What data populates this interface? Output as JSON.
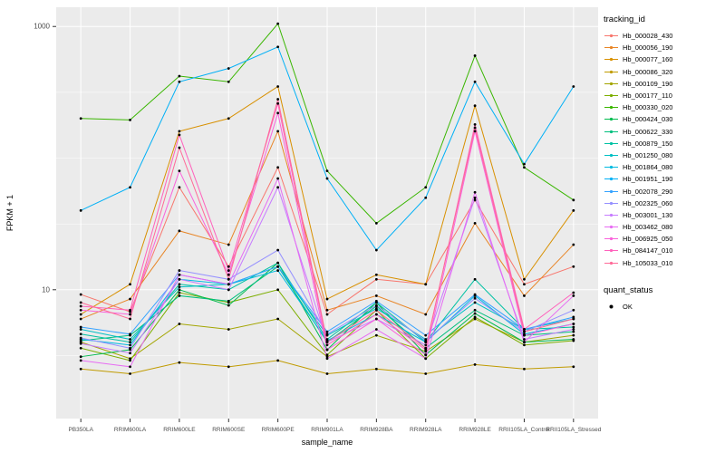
{
  "panel": {
    "bg": "#EBEBEB",
    "grid_major": "#FFFFFF",
    "grid_minor": "#FFFFFF",
    "tick_color": "#333333"
  },
  "chart_data": {
    "type": "line",
    "title": "",
    "xlabel": "sample_name",
    "ylabel": "FPKM + 1",
    "y_scale": "log10",
    "ylim": [
      1.05,
      1400
    ],
    "y_ticks": [
      {
        "value": 1000,
        "label": "1000"
      },
      {
        "value": 10,
        "label": "10"
      }
    ],
    "y_minor": [
      3.16,
      31.6,
      100,
      316
    ],
    "point_color": "#000000",
    "categories": [
      "PB350LA",
      "RRIM600LA",
      "RRIM600LE",
      "RRIM600SE",
      "RRIM600PE",
      "RRIM901LA",
      "RRIM928BA",
      "RRIM928LA",
      "RRIM928LE",
      "RRII105LA_Control",
      "RRII105LA_Stressed"
    ],
    "legend": {
      "color_title": "tracking_id",
      "shape_title": "quant_status",
      "shape_entries": [
        {
          "label": "OK"
        }
      ]
    },
    "series": [
      {
        "name": "Hb_000028_430",
        "color": "#F8766D",
        "values": [
          9.2,
          6.8,
          60,
          15,
          85,
          6.5,
          12,
          11,
          48,
          11,
          15
        ]
      },
      {
        "name": "Hb_000056_190",
        "color": "#E88526",
        "values": [
          6.0,
          8.5,
          28,
          22,
          160,
          7.0,
          9,
          6.5,
          32,
          9,
          22
        ]
      },
      {
        "name": "Hb_000077_160",
        "color": "#D89000",
        "values": [
          6.5,
          11,
          160,
          200,
          350,
          8.5,
          13,
          11,
          250,
          12,
          40
        ]
      },
      {
        "name": "Hb_000086_320",
        "color": "#C09B00",
        "values": [
          2.5,
          2.3,
          2.8,
          2.6,
          2.9,
          2.3,
          2.5,
          2.3,
          2.7,
          2.5,
          2.6
        ]
      },
      {
        "name": "Hb_000109_190",
        "color": "#A3A500",
        "values": [
          4.0,
          3.0,
          5.5,
          5.0,
          6.0,
          3.1,
          4.5,
          3.4,
          6.0,
          4.0,
          4.5
        ]
      },
      {
        "name": "Hb_000177_110",
        "color": "#7CAE00",
        "values": [
          3.6,
          2.9,
          9.5,
          8.0,
          10,
          3.2,
          7.0,
          3.0,
          6.2,
          3.8,
          4.1
        ]
      },
      {
        "name": "Hb_000330_020",
        "color": "#39B600",
        "values": [
          200,
          195,
          420,
          380,
          1050,
          80,
          32,
          60,
          600,
          85,
          48
        ]
      },
      {
        "name": "Hb_000424_030",
        "color": "#00BB4E",
        "values": [
          3.1,
          3.5,
          10,
          7.6,
          16,
          3.5,
          8.0,
          3.2,
          6.6,
          4.0,
          4.2
        ]
      },
      {
        "name": "Hb_000622_330",
        "color": "#00BF7D",
        "values": [
          4.1,
          4.5,
          9.0,
          8.2,
          15,
          4.0,
          7.5,
          3.6,
          7.0,
          4.5,
          4.8
        ]
      },
      {
        "name": "Hb_000879_150",
        "color": "#00C1A3",
        "values": [
          4.6,
          4.0,
          11,
          10,
          16,
          4.2,
          8.0,
          4.0,
          12,
          5.0,
          5.2
        ]
      },
      {
        "name": "Hb_001250_080",
        "color": "#00BFC4",
        "values": [
          5.0,
          4.2,
          10.5,
          11,
          15,
          4.5,
          7.2,
          4.2,
          8.0,
          5.0,
          6.0
        ]
      },
      {
        "name": "Hb_001864_080",
        "color": "#00BAE0",
        "values": [
          4.2,
          3.8,
          12,
          11,
          14,
          4.1,
          6.5,
          4.0,
          9.0,
          4.6,
          5.5
        ]
      },
      {
        "name": "Hb_001951_190",
        "color": "#00B0F6",
        "values": [
          40,
          60,
          380,
          480,
          700,
          70,
          20,
          50,
          380,
          90,
          350
        ]
      },
      {
        "name": "Hb_002078_290",
        "color": "#35A2FF",
        "values": [
          5.2,
          4.6,
          13,
          11,
          15,
          4.8,
          8.2,
          4.5,
          9.2,
          5.0,
          6.2
        ]
      },
      {
        "name": "Hb_002325_060",
        "color": "#9590FF",
        "values": [
          4.3,
          3.6,
          14,
          12,
          20,
          4.6,
          7.6,
          4.1,
          8.6,
          4.8,
          7.0
        ]
      },
      {
        "name": "Hb_003001_130",
        "color": "#C77CFF",
        "values": [
          3.9,
          3.3,
          12,
          10,
          60,
          4.0,
          6.0,
          3.8,
          50,
          4.2,
          5.0
        ]
      },
      {
        "name": "Hb_003462_080",
        "color": "#E76BF3",
        "values": [
          2.9,
          2.6,
          13,
          11,
          70,
          3.0,
          5.0,
          3.0,
          55,
          4.0,
          9.0
        ]
      },
      {
        "name": "Hb_006925_050",
        "color": "#FA62DB",
        "values": [
          7.0,
          6.5,
          80,
          13,
          220,
          3.5,
          6.0,
          3.2,
          160,
          4.5,
          5.5
        ]
      },
      {
        "name": "Hb_084147_010",
        "color": "#FF62BC",
        "values": [
          7.5,
          7.0,
          150,
          14,
          260,
          3.8,
          6.5,
          3.5,
          180,
          5.0,
          9.5
        ]
      },
      {
        "name": "Hb_105033_010",
        "color": "#FF6A98",
        "values": [
          8.0,
          6.0,
          120,
          12,
          280,
          4.0,
          7.0,
          3.6,
          170,
          4.8,
          6.0
        ]
      }
    ]
  }
}
